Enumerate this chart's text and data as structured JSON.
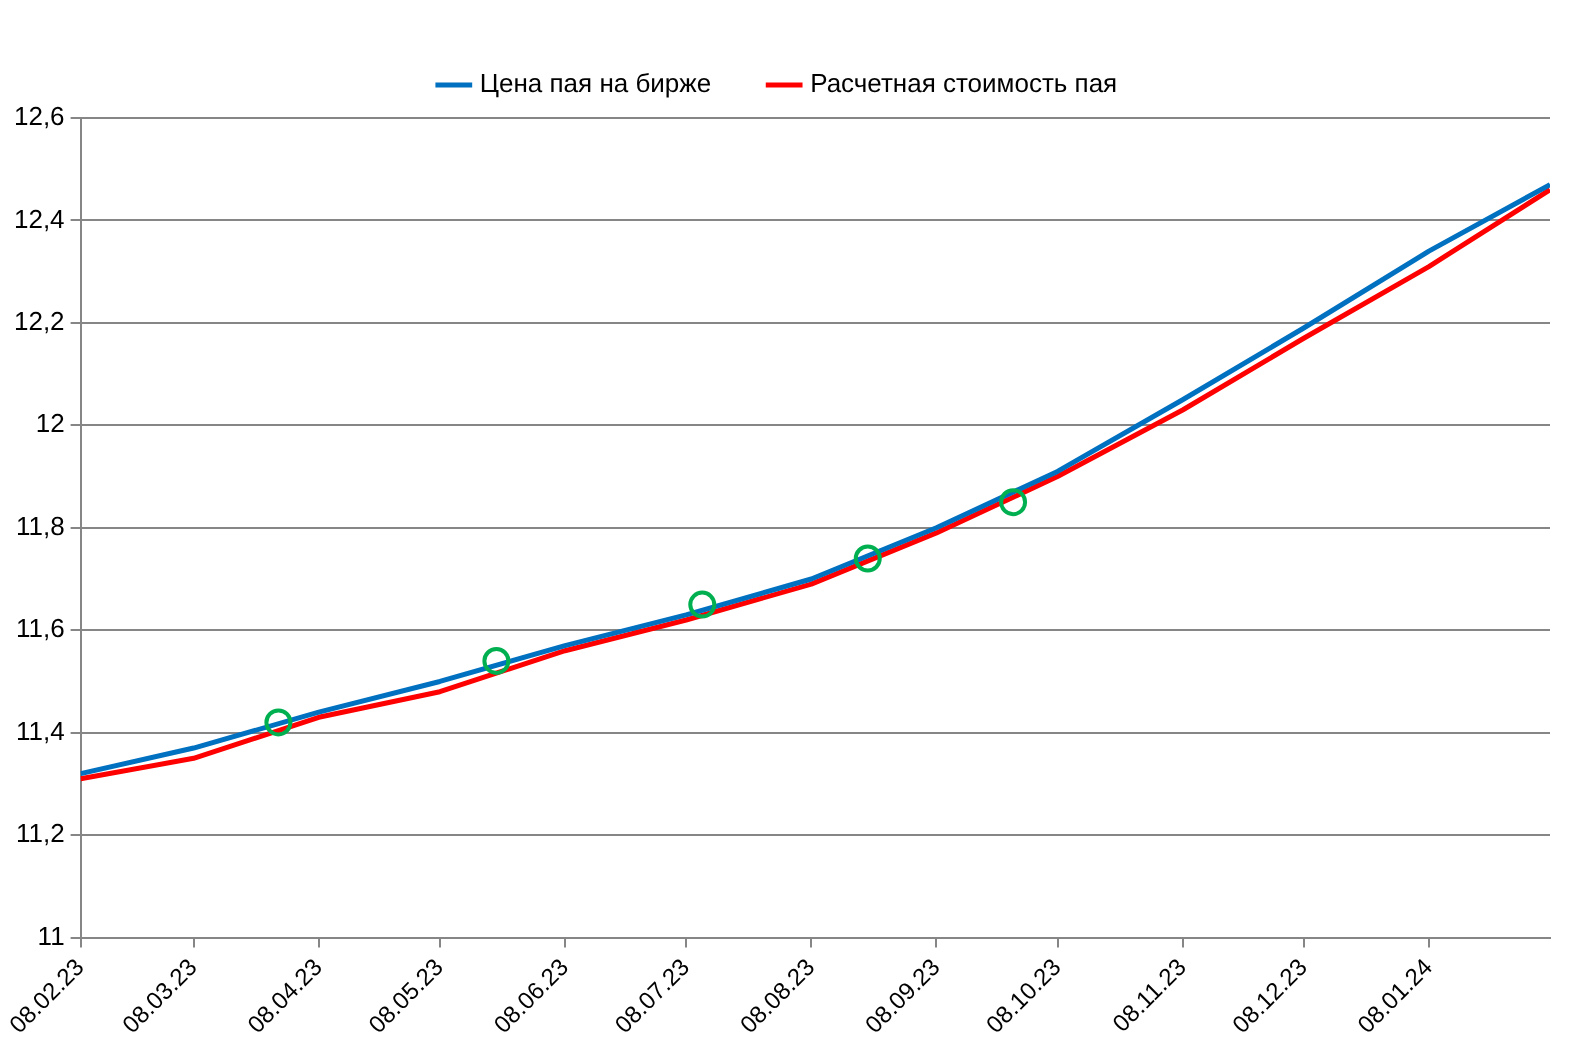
{
  "chart_data": {
    "type": "line",
    "x": [
      "2023-02-08",
      "2023-03-08",
      "2023-04-08",
      "2023-05-08",
      "2023-06-08",
      "2023-07-08",
      "2023-08-08",
      "2023-09-08",
      "2023-10-08",
      "2023-11-08",
      "2023-12-08",
      "2024-01-08",
      "2024-02-07"
    ],
    "series": [
      {
        "name": "Цена пая на бирже",
        "color": "#0070c0",
        "values": [
          11.32,
          11.37,
          11.44,
          11.5,
          11.57,
          11.63,
          11.7,
          11.8,
          11.91,
          12.05,
          12.19,
          12.34,
          12.47
        ]
      },
      {
        "name": "Расчетная стоимость пая",
        "color": "#ff0000",
        "values": [
          11.31,
          11.35,
          11.43,
          11.48,
          11.56,
          11.62,
          11.69,
          11.79,
          11.9,
          12.03,
          12.17,
          12.31,
          12.46
        ]
      },
      {
        "type": "scatter",
        "color": "#00b050",
        "marker": "circle",
        "x": [
          "2023-03-29",
          "2023-05-22",
          "2023-07-12",
          "2023-08-22",
          "2023-09-27"
        ],
        "values": [
          11.42,
          11.54,
          11.65,
          11.74,
          11.85
        ]
      }
    ],
    "xlim": [
      "2023-02-08",
      "2024-02-07"
    ],
    "xticks": [
      {
        "value": "2023-02-08",
        "label": "08.02.23"
      },
      {
        "value": "2023-03-08",
        "label": "08.03.23"
      },
      {
        "value": "2023-04-08",
        "label": "08.04.23"
      },
      {
        "value": "2023-05-08",
        "label": "08.05.23"
      },
      {
        "value": "2023-06-08",
        "label": "08.06.23"
      },
      {
        "value": "2023-07-08",
        "label": "08.07.23"
      },
      {
        "value": "2023-08-08",
        "label": "08.08.23"
      },
      {
        "value": "2023-09-08",
        "label": "08.09.23"
      },
      {
        "value": "2023-10-08",
        "label": "08.10.23"
      },
      {
        "value": "2023-11-08",
        "label": "08.11.23"
      },
      {
        "value": "2023-12-08",
        "label": "08.12.23"
      },
      {
        "value": "2024-01-08",
        "label": "08.01.24"
      }
    ],
    "ylim": [
      11,
      12.6
    ],
    "yticks": [
      11,
      {
        "value": 11.2,
        "label": "11,2"
      },
      {
        "value": 11.4,
        "label": "11,4"
      },
      {
        "value": 11.6,
        "label": "11,6"
      },
      {
        "value": 11.8,
        "label": "11,8"
      },
      12,
      {
        "value": 12.2,
        "label": "12,2"
      },
      {
        "value": 12.4,
        "label": "12,4"
      },
      {
        "value": 12.6,
        "label": "12,6"
      }
    ],
    "grid": "y",
    "legend": "top",
    "line_style": "solid"
  }
}
